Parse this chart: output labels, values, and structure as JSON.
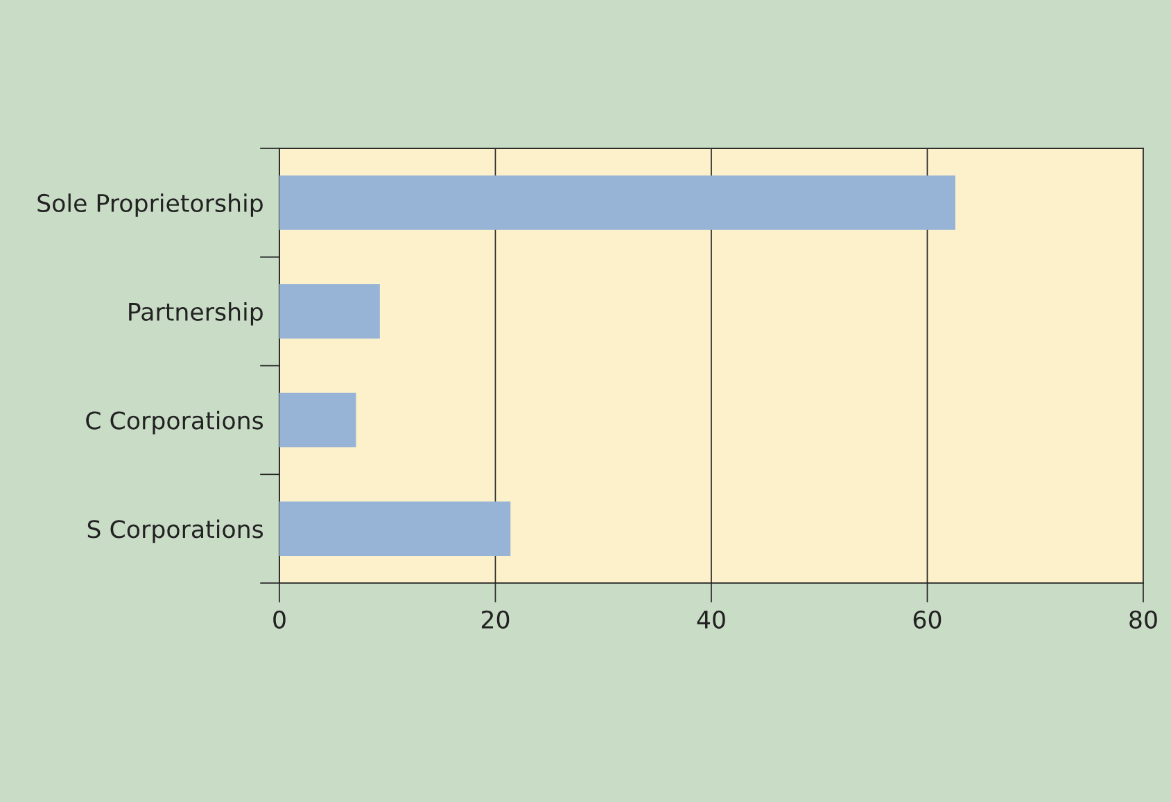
{
  "chart_data": {
    "type": "bar",
    "orientation": "horizontal",
    "categories": [
      "Sole Proprietorship",
      "Partnership",
      "C Corporations",
      "S Corporations"
    ],
    "values": [
      62.6,
      9.3,
      7.1,
      21.4
    ],
    "color": "#97b4d6",
    "xlim": [
      0,
      80
    ],
    "xticks": [
      0,
      20,
      40,
      60,
      80
    ],
    "grid": "x"
  }
}
